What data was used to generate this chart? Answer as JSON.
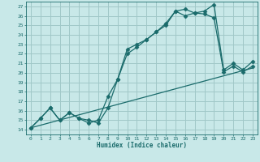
{
  "title": "",
  "xlabel": "Humidex (Indice chaleur)",
  "bg_color": "#c8e8e8",
  "grid_color": "#a0c8c8",
  "line_color": "#1a6b6b",
  "xlim": [
    -0.5,
    23.5
  ],
  "ylim": [
    13.5,
    27.5
  ],
  "yticks": [
    14,
    15,
    16,
    17,
    18,
    19,
    20,
    21,
    22,
    23,
    24,
    25,
    26,
    27
  ],
  "xticks": [
    0,
    1,
    2,
    3,
    4,
    5,
    6,
    7,
    8,
    9,
    10,
    11,
    12,
    13,
    14,
    15,
    16,
    17,
    18,
    19,
    20,
    21,
    22,
    23
  ],
  "line1_x": [
    0,
    1,
    2,
    3,
    4,
    5,
    6,
    7,
    8,
    9,
    10,
    11,
    12,
    13,
    14,
    15,
    16,
    17,
    18,
    19,
    20,
    21,
    22,
    23
  ],
  "line1_y": [
    14.2,
    15.2,
    16.3,
    15.0,
    15.8,
    15.2,
    14.7,
    15.0,
    17.5,
    19.3,
    22.5,
    23.0,
    23.5,
    24.3,
    25.2,
    26.5,
    26.7,
    26.3,
    26.5,
    27.2,
    20.3,
    21.0,
    20.3,
    21.2
  ],
  "line2_x": [
    0,
    1,
    2,
    3,
    4,
    5,
    6,
    7,
    8,
    9,
    10,
    11,
    12,
    13,
    14,
    15,
    16,
    17,
    18,
    19,
    20,
    21,
    22,
    23
  ],
  "line2_y": [
    14.2,
    15.2,
    16.3,
    15.0,
    15.8,
    15.2,
    15.0,
    14.7,
    16.3,
    19.3,
    22.0,
    22.7,
    23.5,
    24.3,
    25.0,
    26.5,
    26.0,
    26.3,
    26.2,
    25.8,
    20.1,
    20.7,
    20.1,
    20.7
  ],
  "line3_x": [
    0,
    23
  ],
  "line3_y": [
    14.2,
    20.5
  ]
}
